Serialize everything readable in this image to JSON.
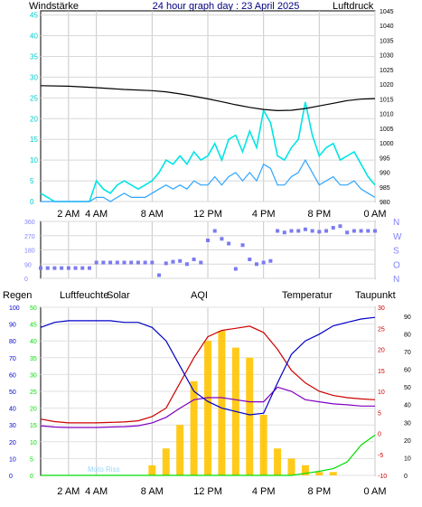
{
  "header": {
    "left_label": "Windstärke",
    "title": "24 hour graph day : 23 April 2025",
    "right_label": "Luftdruck"
  },
  "time_ticks": [
    "2 AM",
    "4 AM",
    "8 AM",
    "12 PM",
    "4 PM",
    "8 PM",
    "0 AM"
  ],
  "colors": {
    "wind": "#00e5e5",
    "wind_avg": "#2ea4ff",
    "pressure": "#000000",
    "direction": "#7b7bf2",
    "rain": "#00dd00",
    "humidity": "#0000c8",
    "solar": "#ffc400",
    "aqi": "#808000",
    "temperature": "#cc0000",
    "dewpoint": "#8000c0",
    "uv": "#9ad8ff",
    "axis_cyan": "#00cccc"
  },
  "legend": {
    "rain": "Regen",
    "humidity": "Luftfeuchte",
    "solar": "Solar",
    "aqi": "AQI",
    "temperature": "Temperatur",
    "dewpoint": "Taupunkt",
    "uv_watermark": "Moto Riss"
  },
  "chart_data": [
    {
      "type": "line",
      "name": "wind-pressure",
      "x_unit": "hour",
      "xlim": [
        0,
        24
      ],
      "ylim_left": [
        0,
        46
      ],
      "left_ticks": [
        0,
        5,
        10,
        15,
        20,
        25,
        30,
        35,
        40,
        45
      ],
      "ylim_right": [
        980,
        1045
      ],
      "right_ticks": [
        980,
        985,
        990,
        995,
        1000,
        1005,
        1010,
        1015,
        1020,
        1025,
        1030,
        1035,
        1040,
        1045
      ],
      "series": [
        {
          "key": "pressure",
          "axis": "right",
          "x": [
            0,
            2,
            4,
            6,
            8,
            9,
            10,
            11,
            12,
            13,
            14,
            15,
            16,
            17,
            18,
            19,
            20,
            21,
            22,
            23,
            24
          ],
          "y": [
            1019.5,
            1019.3,
            1018.8,
            1018.2,
            1017.8,
            1017.4,
            1016.7,
            1015.9,
            1015.0,
            1014.0,
            1013.0,
            1012.1,
            1011.4,
            1011.0,
            1011.1,
            1011.7,
            1012.6,
            1013.5,
            1014.4,
            1014.9,
            1015.1
          ]
        },
        {
          "key": "wind_gust",
          "axis": "left",
          "x": [
            0,
            0.5,
            1,
            1.5,
            2,
            2.5,
            3,
            3.5,
            4,
            4.5,
            5,
            5.5,
            6,
            6.5,
            7,
            7.5,
            8,
            8.5,
            9,
            9.5,
            10,
            10.5,
            11,
            11.5,
            12,
            12.5,
            13,
            13.5,
            14,
            14.5,
            15,
            15.5,
            16,
            16.5,
            17,
            17.5,
            18,
            18.5,
            19,
            19.5,
            20,
            20.5,
            21,
            21.5,
            22,
            22.5,
            23,
            23.5,
            24
          ],
          "y": [
            2,
            1,
            0,
            0,
            0,
            0,
            0,
            0,
            5,
            3,
            2,
            4,
            5,
            4,
            3,
            4,
            5,
            7,
            10,
            9,
            11,
            9,
            12,
            10,
            11,
            14,
            10,
            15,
            16,
            12,
            17,
            13,
            22,
            19,
            11,
            10,
            13,
            15,
            24,
            16,
            11,
            13,
            14,
            10,
            11,
            12,
            9,
            6,
            4
          ]
        },
        {
          "key": "wind_avg",
          "axis": "left",
          "x": [
            0,
            0.5,
            1,
            1.5,
            2,
            2.5,
            3,
            3.5,
            4,
            4.5,
            5,
            5.5,
            6,
            6.5,
            7,
            7.5,
            8,
            8.5,
            9,
            9.5,
            10,
            10.5,
            11,
            11.5,
            12,
            12.5,
            13,
            13.5,
            14,
            14.5,
            15,
            15.5,
            16,
            16.5,
            17,
            17.5,
            18,
            18.5,
            19,
            19.5,
            20,
            20.5,
            21,
            21.5,
            22,
            22.5,
            23,
            23.5,
            24
          ],
          "y": [
            0,
            0,
            0,
            0,
            0,
            0,
            0,
            0,
            1,
            1,
            0,
            1,
            2,
            1,
            1,
            1,
            2,
            3,
            4,
            3,
            4,
            3,
            5,
            4,
            4,
            6,
            4,
            6,
            7,
            5,
            7,
            5,
            9,
            8,
            4,
            4,
            6,
            7,
            10,
            7,
            4,
            5,
            6,
            4,
            4,
            5,
            3,
            2,
            1
          ]
        }
      ]
    },
    {
      "type": "scatter",
      "name": "wind-direction",
      "x_unit": "hour",
      "xlim": [
        0,
        24
      ],
      "ylim": [
        0,
        360
      ],
      "ticks": [
        0,
        90,
        180,
        270,
        360
      ],
      "compass": [
        "N",
        "W",
        "S",
        "O",
        "N"
      ],
      "series": [
        {
          "key": "direction",
          "x": [
            0,
            0.5,
            1,
            1.5,
            2,
            2.5,
            3,
            3.5,
            4,
            4.5,
            5,
            5.5,
            6,
            6.5,
            7,
            7.5,
            8,
            8.5,
            9,
            9.5,
            10,
            10.5,
            11,
            11.5,
            12,
            12.5,
            13,
            13.5,
            14,
            14.5,
            15,
            15.5,
            16,
            16.5,
            17,
            17.5,
            18,
            18.5,
            19,
            19.5,
            20,
            20.5,
            21,
            21.5,
            22,
            22.5,
            23,
            23.5,
            24
          ],
          "y": [
            65,
            65,
            65,
            65,
            65,
            65,
            65,
            65,
            100,
            100,
            100,
            100,
            100,
            100,
            100,
            100,
            100,
            20,
            95,
            105,
            110,
            90,
            120,
            100,
            240,
            300,
            250,
            220,
            60,
            210,
            120,
            90,
            100,
            110,
            300,
            290,
            300,
            300,
            310,
            300,
            295,
            300,
            320,
            330,
            290,
            300,
            300,
            300,
            300
          ]
        }
      ]
    },
    {
      "type": "line",
      "name": "weather-multi",
      "x_unit": "hour",
      "xlim": [
        0,
        24
      ],
      "ylim_left": [
        0,
        100
      ],
      "left_ticks": [
        0,
        10,
        20,
        30,
        40,
        50,
        60,
        70,
        80,
        90,
        100
      ],
      "ylim_mid": [
        0,
        50
      ],
      "mid_ticks": [
        0,
        5,
        10,
        15,
        20,
        25,
        30,
        35,
        40,
        45,
        50
      ],
      "ylim_temp": [
        -10,
        30
      ],
      "temp_ticks": [
        -10,
        -5,
        0,
        5,
        10,
        15,
        20,
        25,
        30
      ],
      "ylim_right": [
        0,
        95
      ],
      "right_ticks": [
        0,
        10,
        20,
        30,
        40,
        50,
        60,
        70,
        80,
        90
      ],
      "series": [
        {
          "key": "humidity",
          "axis": "left",
          "x": [
            0,
            1,
            2,
            3,
            4,
            5,
            6,
            7,
            8,
            9,
            10,
            11,
            12,
            13,
            14,
            15,
            16,
            17,
            18,
            19,
            20,
            21,
            22,
            23,
            24
          ],
          "y": [
            88,
            91,
            92,
            92,
            92,
            92,
            91,
            91,
            88,
            80,
            65,
            50,
            44,
            40,
            38,
            36,
            37,
            55,
            72,
            80,
            84,
            89,
            91,
            93,
            94
          ]
        },
        {
          "key": "temperature",
          "axis": "temp",
          "x": [
            0,
            1,
            2,
            3,
            4,
            5,
            6,
            7,
            8,
            9,
            10,
            11,
            12,
            13,
            14,
            15,
            16,
            17,
            18,
            19,
            20,
            21,
            22,
            23,
            24
          ],
          "y": [
            3.4,
            2.8,
            2.5,
            2.5,
            2.5,
            2.6,
            2.7,
            3.0,
            4.0,
            6.0,
            12.0,
            18.0,
            23.0,
            24.5,
            25.0,
            25.5,
            24.0,
            20.0,
            15.0,
            12.0,
            10.0,
            9.0,
            8.5,
            8.2,
            8.0
          ]
        },
        {
          "key": "dewpoint",
          "axis": "temp",
          "x": [
            0,
            1,
            2,
            3,
            4,
            5,
            6,
            7,
            8,
            9,
            10,
            11,
            12,
            13,
            14,
            15,
            16,
            17,
            18,
            19,
            20,
            21,
            22,
            23,
            24
          ],
          "y": [
            1.8,
            1.5,
            1.4,
            1.4,
            1.4,
            1.5,
            1.6,
            1.8,
            2.5,
            3.8,
            6.0,
            8.0,
            8.5,
            8.5,
            8.0,
            7.5,
            7.5,
            11.0,
            10.0,
            8.0,
            7.5,
            7.0,
            6.8,
            6.5,
            6.5
          ]
        },
        {
          "key": "solar",
          "axis": "mid",
          "x": [
            7,
            8,
            9,
            10,
            11,
            12,
            13,
            14,
            15,
            16,
            17,
            18,
            19,
            20,
            21,
            22
          ],
          "y": [
            0,
            3,
            8,
            15,
            28,
            40,
            43,
            38,
            35,
            18,
            8,
            5,
            3,
            1,
            1,
            0
          ]
        },
        {
          "key": "rain",
          "axis": "left",
          "x": [
            0,
            18,
            19,
            20,
            21,
            22,
            23,
            24
          ],
          "y": [
            0,
            0,
            0.6,
            1.2,
            2.0,
            4.0,
            9.0,
            12.0
          ]
        }
      ]
    }
  ]
}
